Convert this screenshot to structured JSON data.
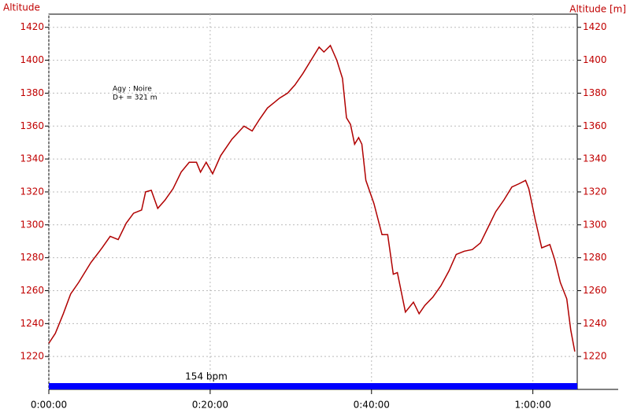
{
  "chart_data": {
    "type": "line",
    "y_label": "Altitude",
    "y2_label": "Altitude [m]",
    "annotations": [
      "Agy : Noire",
      "D+ = 321 m"
    ],
    "band_label": "154 bpm",
    "x": [
      0,
      0.8,
      1.8,
      2.7,
      3.7,
      5.2,
      6.6,
      7.6,
      8.6,
      9.6,
      10.5,
      11.5,
      12,
      12.7,
      13.5,
      14.4,
      15.4,
      16.4,
      17.4,
      18.3,
      18.8,
      19.5,
      20.3,
      21.3,
      22.7,
      24.2,
      25.2,
      26.1,
      27.1,
      28.1,
      28.6,
      29.6,
      30.5,
      31.5,
      32.5,
      33.5,
      34.1,
      34.9,
      35.7,
      36.4,
      36.9,
      37.4,
      37.9,
      38.4,
      38.8,
      39.3,
      40.3,
      41.3,
      42,
      42.7,
      43.2,
      44.2,
      45.2,
      45.9,
      46.6,
      47.6,
      48.6,
      49.6,
      50.5,
      51.5,
      52.5,
      53.5,
      54.4,
      55.4,
      56.4,
      57.4,
      58.3,
      59.1,
      59.5,
      60.3,
      61.1,
      62.1,
      62.7,
      63.4,
      64.2,
      64.7,
      65.2
    ],
    "series": [
      {
        "color": "#b00000",
        "values": [
          1228,
          1234,
          1246,
          1258,
          1265,
          1277,
          1286,
          1293,
          1291,
          1301,
          1307,
          1309,
          1320,
          1321,
          1310,
          1315,
          1322,
          1332,
          1338,
          1338,
          1332,
          1338,
          1331,
          1342,
          1352,
          1360,
          1357,
          1364,
          1371,
          1375,
          1377,
          1380,
          1385,
          1392,
          1400,
          1408,
          1405,
          1409,
          1400,
          1389,
          1365,
          1361,
          1349,
          1353,
          1349,
          1327,
          1313,
          1294,
          1294,
          1270,
          1271,
          1247,
          1253,
          1246,
          1251,
          1256,
          1263,
          1272,
          1282,
          1284,
          1285,
          1289,
          1298,
          1308,
          1315,
          1323,
          1325,
          1327,
          1322,
          1303,
          1286,
          1288,
          1279,
          1265,
          1255,
          1236,
          1223
        ]
      }
    ],
    "xlim": [
      0,
      65.5
    ],
    "xticks": [
      {
        "value": 0,
        "label": "0:00:00"
      },
      {
        "value": 20,
        "label": "0:20:00"
      },
      {
        "value": 40,
        "label": "0:40:00"
      },
      {
        "value": 60,
        "label": "1:00:00"
      }
    ],
    "ylim": [
      1200,
      1428
    ],
    "yticks": [
      1220,
      1240,
      1260,
      1280,
      1300,
      1320,
      1340,
      1360,
      1380,
      1400,
      1420
    ],
    "y2lim": [
      1200,
      1428
    ],
    "y2ticks": [
      1220,
      1240,
      1260,
      1280,
      1300,
      1320,
      1340,
      1360,
      1380,
      1400,
      1420
    ],
    "grid": true
  }
}
